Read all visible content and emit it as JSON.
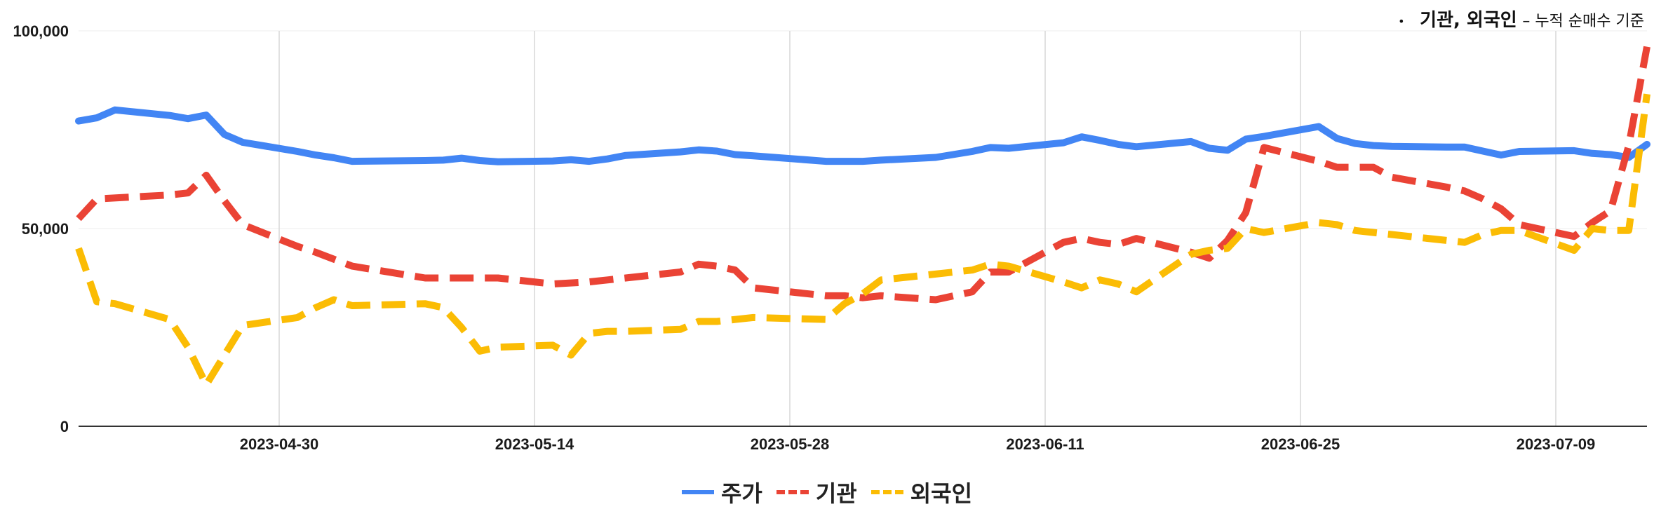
{
  "note": {
    "bullet": "•",
    "main": "기관, 외국인",
    "sub": " – 누적 순매수 기준"
  },
  "chart_data": {
    "type": "line",
    "title": "",
    "xlabel": "",
    "ylabel": "",
    "ylim": [
      0,
      100000
    ],
    "yticks": [
      0,
      50000,
      100000
    ],
    "ytick_labels": [
      "0",
      "50,000",
      "100,000"
    ],
    "xlim": [
      "2023-04-19",
      "2023-07-14"
    ],
    "xticks": [
      "2023-04-30",
      "2023-05-14",
      "2023-05-28",
      "2023-06-11",
      "2023-06-25",
      "2023-07-09"
    ],
    "grid": "vertical at x ticks, faint horizontal",
    "legend_position": "bottom",
    "series": [
      {
        "name": "주가",
        "color": "#4285F4",
        "style": "solid",
        "points": [
          [
            "2023-04-19",
            77200
          ],
          [
            "2023-04-20",
            78000
          ],
          [
            "2023-04-21",
            80000
          ],
          [
            "2023-04-24",
            78600
          ],
          [
            "2023-04-25",
            77800
          ],
          [
            "2023-04-26",
            78700
          ],
          [
            "2023-04-27",
            73800
          ],
          [
            "2023-04-28",
            71800
          ],
          [
            "2023-05-01",
            69500
          ],
          [
            "2023-05-02",
            68600
          ],
          [
            "2023-05-03",
            67900
          ],
          [
            "2023-05-04",
            67000
          ],
          [
            "2023-05-08",
            67200
          ],
          [
            "2023-05-09",
            67300
          ],
          [
            "2023-05-10",
            67800
          ],
          [
            "2023-05-11",
            67200
          ],
          [
            "2023-05-12",
            66900
          ],
          [
            "2023-05-15",
            67100
          ],
          [
            "2023-05-16",
            67400
          ],
          [
            "2023-05-17",
            67000
          ],
          [
            "2023-05-18",
            67600
          ],
          [
            "2023-05-19",
            68500
          ],
          [
            "2023-05-22",
            69400
          ],
          [
            "2023-05-23",
            69900
          ],
          [
            "2023-05-24",
            69600
          ],
          [
            "2023-05-25",
            68700
          ],
          [
            "2023-05-26",
            68400
          ],
          [
            "2023-05-30",
            67000
          ],
          [
            "2023-05-31",
            67000
          ],
          [
            "2023-06-01",
            67000
          ],
          [
            "2023-06-02",
            67300
          ],
          [
            "2023-06-05",
            68000
          ],
          [
            "2023-06-07",
            69500
          ],
          [
            "2023-06-08",
            70500
          ],
          [
            "2023-06-09",
            70300
          ],
          [
            "2023-06-12",
            71700
          ],
          [
            "2023-06-13",
            73200
          ],
          [
            "2023-06-14",
            72300
          ],
          [
            "2023-06-15",
            71300
          ],
          [
            "2023-06-16",
            70700
          ],
          [
            "2023-06-19",
            72000
          ],
          [
            "2023-06-20",
            70300
          ],
          [
            "2023-06-21",
            69800
          ],
          [
            "2023-06-22",
            72600
          ],
          [
            "2023-06-23",
            73300
          ],
          [
            "2023-06-26",
            75800
          ],
          [
            "2023-06-27",
            72800
          ],
          [
            "2023-06-28",
            71500
          ],
          [
            "2023-06-29",
            71000
          ],
          [
            "2023-06-30",
            70800
          ],
          [
            "2023-07-03",
            70600
          ],
          [
            "2023-07-04",
            70600
          ],
          [
            "2023-07-05",
            69600
          ],
          [
            "2023-07-06",
            68600
          ],
          [
            "2023-07-07",
            69500
          ],
          [
            "2023-07-10",
            69700
          ],
          [
            "2023-07-11",
            69000
          ],
          [
            "2023-07-12",
            68700
          ],
          [
            "2023-07-13",
            68000
          ],
          [
            "2023-07-14",
            71300
          ]
        ]
      },
      {
        "name": "기관",
        "color": "#EA4335",
        "style": "dashed",
        "points": [
          [
            "2023-04-19",
            52500
          ],
          [
            "2023-04-20",
            57500
          ],
          [
            "2023-04-24",
            58500
          ],
          [
            "2023-04-25",
            59000
          ],
          [
            "2023-04-26",
            63500
          ],
          [
            "2023-04-27",
            57000
          ],
          [
            "2023-04-28",
            51000
          ],
          [
            "2023-05-01",
            45500
          ],
          [
            "2023-05-02",
            44000
          ],
          [
            "2023-05-04",
            40500
          ],
          [
            "2023-05-08",
            37500
          ],
          [
            "2023-05-09",
            37500
          ],
          [
            "2023-05-10",
            37500
          ],
          [
            "2023-05-11",
            37500
          ],
          [
            "2023-05-12",
            37500
          ],
          [
            "2023-05-15",
            36000
          ],
          [
            "2023-05-17",
            36500
          ],
          [
            "2023-05-18",
            37000
          ],
          [
            "2023-05-19",
            37500
          ],
          [
            "2023-05-22",
            39000
          ],
          [
            "2023-05-23",
            41000
          ],
          [
            "2023-05-24",
            40500
          ],
          [
            "2023-05-25",
            39500
          ],
          [
            "2023-05-26",
            35000
          ],
          [
            "2023-05-30",
            33000
          ],
          [
            "2023-05-31",
            33000
          ],
          [
            "2023-06-01",
            32500
          ],
          [
            "2023-06-02",
            33000
          ],
          [
            "2023-06-05",
            32000
          ],
          [
            "2023-06-07",
            34000
          ],
          [
            "2023-06-08",
            39000
          ],
          [
            "2023-06-09",
            39000
          ],
          [
            "2023-06-12",
            46500
          ],
          [
            "2023-06-13",
            47500
          ],
          [
            "2023-06-14",
            46500
          ],
          [
            "2023-06-15",
            46000
          ],
          [
            "2023-06-16",
            47500
          ],
          [
            "2023-06-19",
            44000
          ],
          [
            "2023-06-20",
            42500
          ],
          [
            "2023-06-21",
            47000
          ],
          [
            "2023-06-22",
            54000
          ],
          [
            "2023-06-23",
            70500
          ],
          [
            "2023-06-26",
            67000
          ],
          [
            "2023-06-27",
            65500
          ],
          [
            "2023-06-28",
            65500
          ],
          [
            "2023-06-29",
            65500
          ],
          [
            "2023-06-30",
            63000
          ],
          [
            "2023-07-03",
            60500
          ],
          [
            "2023-07-04",
            59500
          ],
          [
            "2023-07-05",
            57500
          ],
          [
            "2023-07-06",
            55000
          ],
          [
            "2023-07-07",
            51000
          ],
          [
            "2023-07-10",
            48000
          ],
          [
            "2023-07-11",
            51500
          ],
          [
            "2023-07-12",
            54500
          ],
          [
            "2023-07-13",
            71000
          ],
          [
            "2023-07-14",
            96000
          ]
        ]
      },
      {
        "name": "외국인",
        "color": "#FBBC04",
        "style": "dashed",
        "points": [
          [
            "2023-04-19",
            45000
          ],
          [
            "2023-04-20",
            31500
          ],
          [
            "2023-04-21",
            31000
          ],
          [
            "2023-04-24",
            27000
          ],
          [
            "2023-04-25",
            20000
          ],
          [
            "2023-04-26",
            10500
          ],
          [
            "2023-04-27",
            18000
          ],
          [
            "2023-04-28",
            25500
          ],
          [
            "2023-05-01",
            27500
          ],
          [
            "2023-05-02",
            30000
          ],
          [
            "2023-05-03",
            32000
          ],
          [
            "2023-05-04",
            30500
          ],
          [
            "2023-05-08",
            31000
          ],
          [
            "2023-05-09",
            30000
          ],
          [
            "2023-05-10",
            25000
          ],
          [
            "2023-05-11",
            19000
          ],
          [
            "2023-05-12",
            20000
          ],
          [
            "2023-05-15",
            20500
          ],
          [
            "2023-05-16",
            18000
          ],
          [
            "2023-05-17",
            23500
          ],
          [
            "2023-05-18",
            24000
          ],
          [
            "2023-05-19",
            24000
          ],
          [
            "2023-05-22",
            24500
          ],
          [
            "2023-05-23",
            26500
          ],
          [
            "2023-05-24",
            26500
          ],
          [
            "2023-05-25",
            27000
          ],
          [
            "2023-05-26",
            27500
          ],
          [
            "2023-05-30",
            27000
          ],
          [
            "2023-05-31",
            31000
          ],
          [
            "2023-06-01",
            33500
          ],
          [
            "2023-06-02",
            37000
          ],
          [
            "2023-06-05",
            38500
          ],
          [
            "2023-06-07",
            39500
          ],
          [
            "2023-06-08",
            41000
          ],
          [
            "2023-06-09",
            40500
          ],
          [
            "2023-06-12",
            36500
          ],
          [
            "2023-06-13",
            35000
          ],
          [
            "2023-06-14",
            37000
          ],
          [
            "2023-06-15",
            36000
          ],
          [
            "2023-06-16",
            34000
          ],
          [
            "2023-06-19",
            43500
          ],
          [
            "2023-06-20",
            44500
          ],
          [
            "2023-06-21",
            45000
          ],
          [
            "2023-06-22",
            50000
          ],
          [
            "2023-06-23",
            49000
          ],
          [
            "2023-06-26",
            51500
          ],
          [
            "2023-06-27",
            51000
          ],
          [
            "2023-06-28",
            49500
          ],
          [
            "2023-06-29",
            49000
          ],
          [
            "2023-06-30",
            48500
          ],
          [
            "2023-07-03",
            47000
          ],
          [
            "2023-07-04",
            46500
          ],
          [
            "2023-07-05",
            48500
          ],
          [
            "2023-07-06",
            49500
          ],
          [
            "2023-07-07",
            49500
          ],
          [
            "2023-07-10",
            44500
          ],
          [
            "2023-07-11",
            50000
          ],
          [
            "2023-07-12",
            49500
          ],
          [
            "2023-07-13",
            49500
          ],
          [
            "2023-07-14",
            84000
          ]
        ]
      }
    ]
  }
}
